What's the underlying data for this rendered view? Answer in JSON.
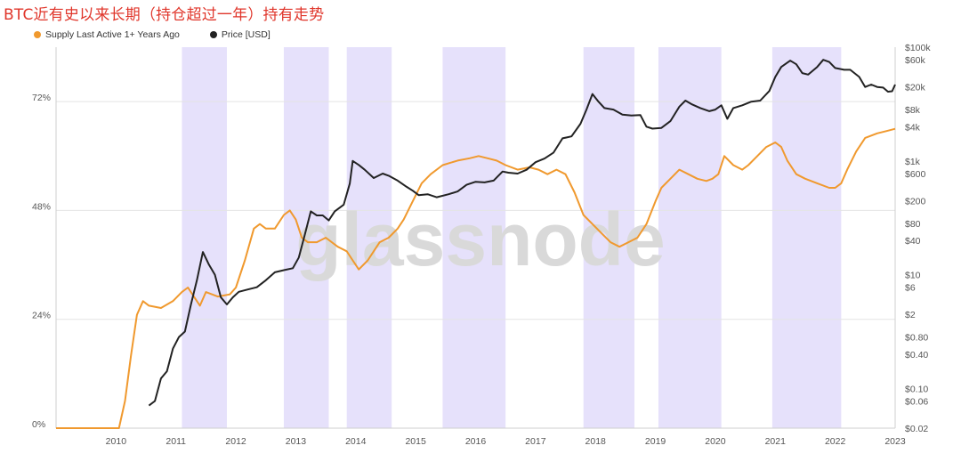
{
  "page_title": "BTC近有史以来长期（持仓超过一年）持有走势",
  "legend": [
    {
      "label": "Supply Last Active 1+ Years Ago",
      "color": "#f0992e"
    },
    {
      "label": "Price [USD]",
      "color": "#222222"
    }
  ],
  "watermark": "glassnode",
  "chart_data": {
    "type": "line",
    "x_range": [
      2009.0,
      2023.0
    ],
    "x_tick_labels": [
      "2010",
      "2011",
      "2012",
      "2013",
      "2014",
      "2015",
      "2016",
      "2017",
      "2018",
      "2019",
      "2020",
      "2021",
      "2022",
      "2023"
    ],
    "y_left_range": [
      0,
      84
    ],
    "y_left_ticks": [
      {
        "v": 0,
        "label": "0%"
      },
      {
        "v": 24,
        "label": "24%"
      },
      {
        "v": 48,
        "label": "48%"
      },
      {
        "v": 72,
        "label": "72%"
      }
    ],
    "y_right_scale": "log",
    "y_right_range": [
      0.02,
      100000
    ],
    "y_right_ticks": [
      {
        "v": 100000,
        "label": "$100k"
      },
      {
        "v": 60000,
        "label": "$60k"
      },
      {
        "v": 20000,
        "label": "$20k"
      },
      {
        "v": 8000,
        "label": "$8k"
      },
      {
        "v": 4000,
        "label": "$4k"
      },
      {
        "v": 1000,
        "label": "$1k"
      },
      {
        "v": 600,
        "label": "$600"
      },
      {
        "v": 200,
        "label": "$200"
      },
      {
        "v": 80,
        "label": "$80"
      },
      {
        "v": 40,
        "label": "$40"
      },
      {
        "v": 10,
        "label": "$10"
      },
      {
        "v": 6,
        "label": "$6"
      },
      {
        "v": 2,
        "label": "$2"
      },
      {
        "v": 0.8,
        "label": "$0.80"
      },
      {
        "v": 0.4,
        "label": "$0.40"
      },
      {
        "v": 0.1,
        "label": "$0.10"
      },
      {
        "v": 0.06,
        "label": "$0.06"
      },
      {
        "v": 0.02,
        "label": "$0.02"
      }
    ],
    "shaded_periods": [
      [
        2011.1,
        2011.85
      ],
      [
        2012.8,
        2013.55
      ],
      [
        2013.85,
        2014.6
      ],
      [
        2015.45,
        2016.5
      ],
      [
        2017.8,
        2018.65
      ],
      [
        2019.05,
        2020.1
      ],
      [
        2020.95,
        2022.1
      ]
    ],
    "series": [
      {
        "name": "Supply Last Active 1+ Years Ago",
        "color": "#f0992e",
        "points": [
          [
            2009.0,
            0
          ],
          [
            2010.0,
            0
          ],
          [
            2010.05,
            0
          ],
          [
            2010.15,
            6
          ],
          [
            2010.25,
            16
          ],
          [
            2010.35,
            25
          ],
          [
            2010.45,
            28
          ],
          [
            2010.55,
            27
          ],
          [
            2010.75,
            26.5
          ],
          [
            2010.95,
            28
          ],
          [
            2011.1,
            30
          ],
          [
            2011.2,
            31
          ],
          [
            2011.3,
            29
          ],
          [
            2011.4,
            27
          ],
          [
            2011.5,
            30
          ],
          [
            2011.7,
            29
          ],
          [
            2011.9,
            29.5
          ],
          [
            2012.0,
            31
          ],
          [
            2012.15,
            37
          ],
          [
            2012.3,
            44
          ],
          [
            2012.4,
            45
          ],
          [
            2012.5,
            44
          ],
          [
            2012.65,
            44
          ],
          [
            2012.8,
            47
          ],
          [
            2012.9,
            48
          ],
          [
            2013.0,
            46
          ],
          [
            2013.1,
            42
          ],
          [
            2013.2,
            41
          ],
          [
            2013.35,
            41
          ],
          [
            2013.5,
            42
          ],
          [
            2013.7,
            40
          ],
          [
            2013.85,
            39
          ],
          [
            2013.95,
            37
          ],
          [
            2014.05,
            35
          ],
          [
            2014.2,
            37
          ],
          [
            2014.4,
            41
          ],
          [
            2014.55,
            42
          ],
          [
            2014.7,
            44
          ],
          [
            2014.8,
            46
          ],
          [
            2014.95,
            50
          ],
          [
            2015.1,
            54
          ],
          [
            2015.25,
            56
          ],
          [
            2015.45,
            58
          ],
          [
            2015.7,
            59
          ],
          [
            2015.9,
            59.5
          ],
          [
            2016.05,
            60
          ],
          [
            2016.2,
            59.5
          ],
          [
            2016.35,
            59
          ],
          [
            2016.5,
            58
          ],
          [
            2016.7,
            57
          ],
          [
            2016.9,
            57.5
          ],
          [
            2017.05,
            57
          ],
          [
            2017.2,
            56
          ],
          [
            2017.35,
            57
          ],
          [
            2017.5,
            56
          ],
          [
            2017.65,
            52
          ],
          [
            2017.8,
            47
          ],
          [
            2017.95,
            45
          ],
          [
            2018.1,
            43
          ],
          [
            2018.25,
            41
          ],
          [
            2018.4,
            40
          ],
          [
            2018.55,
            41
          ],
          [
            2018.7,
            42
          ],
          [
            2018.85,
            45
          ],
          [
            2019.0,
            50
          ],
          [
            2019.1,
            53
          ],
          [
            2019.25,
            55
          ],
          [
            2019.4,
            57
          ],
          [
            2019.55,
            56
          ],
          [
            2019.7,
            55
          ],
          [
            2019.85,
            54.5
          ],
          [
            2019.95,
            55
          ],
          [
            2020.05,
            56
          ],
          [
            2020.15,
            60
          ],
          [
            2020.3,
            58
          ],
          [
            2020.45,
            57
          ],
          [
            2020.55,
            58
          ],
          [
            2020.7,
            60
          ],
          [
            2020.85,
            62
          ],
          [
            2021.0,
            63
          ],
          [
            2021.1,
            62
          ],
          [
            2021.2,
            59
          ],
          [
            2021.35,
            56
          ],
          [
            2021.5,
            55
          ],
          [
            2021.7,
            54
          ],
          [
            2021.9,
            53
          ],
          [
            2022.0,
            53
          ],
          [
            2022.1,
            54
          ],
          [
            2022.2,
            57
          ],
          [
            2022.35,
            61
          ],
          [
            2022.5,
            64
          ],
          [
            2022.7,
            65
          ],
          [
            2022.85,
            65.5
          ],
          [
            2023.0,
            66
          ]
        ]
      },
      {
        "name": "Price [USD]",
        "color": "#222222",
        "points": [
          [
            2010.55,
            0.05
          ],
          [
            2010.65,
            0.06
          ],
          [
            2010.75,
            0.15
          ],
          [
            2010.85,
            0.2
          ],
          [
            2010.95,
            0.5
          ],
          [
            2011.05,
            0.8
          ],
          [
            2011.15,
            1
          ],
          [
            2011.25,
            3
          ],
          [
            2011.35,
            8
          ],
          [
            2011.45,
            25
          ],
          [
            2011.55,
            15
          ],
          [
            2011.65,
            10
          ],
          [
            2011.75,
            4
          ],
          [
            2011.85,
            3
          ],
          [
            2011.95,
            4
          ],
          [
            2012.05,
            5
          ],
          [
            2012.2,
            5.5
          ],
          [
            2012.35,
            6
          ],
          [
            2012.5,
            8
          ],
          [
            2012.65,
            11
          ],
          [
            2012.8,
            12
          ],
          [
            2012.95,
            13
          ],
          [
            2013.05,
            20
          ],
          [
            2013.15,
            50
          ],
          [
            2013.25,
            130
          ],
          [
            2013.35,
            110
          ],
          [
            2013.45,
            110
          ],
          [
            2013.55,
            90
          ],
          [
            2013.65,
            130
          ],
          [
            2013.8,
            170
          ],
          [
            2013.9,
            400
          ],
          [
            2013.95,
            1000
          ],
          [
            2014.05,
            850
          ],
          [
            2014.15,
            700
          ],
          [
            2014.3,
            500
          ],
          [
            2014.45,
            600
          ],
          [
            2014.55,
            550
          ],
          [
            2014.7,
            450
          ],
          [
            2014.85,
            350
          ],
          [
            2014.95,
            300
          ],
          [
            2015.05,
            250
          ],
          [
            2015.2,
            260
          ],
          [
            2015.35,
            230
          ],
          [
            2015.55,
            260
          ],
          [
            2015.7,
            290
          ],
          [
            2015.85,
            380
          ],
          [
            2016.0,
            430
          ],
          [
            2016.15,
            420
          ],
          [
            2016.3,
            450
          ],
          [
            2016.45,
            650
          ],
          [
            2016.55,
            620
          ],
          [
            2016.7,
            600
          ],
          [
            2016.85,
            700
          ],
          [
            2017.0,
            950
          ],
          [
            2017.15,
            1100
          ],
          [
            2017.3,
            1400
          ],
          [
            2017.45,
            2500
          ],
          [
            2017.6,
            2700
          ],
          [
            2017.75,
            4500
          ],
          [
            2017.85,
            8000
          ],
          [
            2017.95,
            15000
          ],
          [
            2018.05,
            11000
          ],
          [
            2018.15,
            8500
          ],
          [
            2018.3,
            8000
          ],
          [
            2018.45,
            6500
          ],
          [
            2018.6,
            6300
          ],
          [
            2018.75,
            6400
          ],
          [
            2018.85,
            4000
          ],
          [
            2018.95,
            3700
          ],
          [
            2019.1,
            3800
          ],
          [
            2019.25,
            5000
          ],
          [
            2019.4,
            9000
          ],
          [
            2019.5,
            11500
          ],
          [
            2019.6,
            10000
          ],
          [
            2019.75,
            8500
          ],
          [
            2019.9,
            7500
          ],
          [
            2020.0,
            8000
          ],
          [
            2020.1,
            9500
          ],
          [
            2020.2,
            5500
          ],
          [
            2020.3,
            8500
          ],
          [
            2020.45,
            9500
          ],
          [
            2020.6,
            11000
          ],
          [
            2020.75,
            11500
          ],
          [
            2020.9,
            17000
          ],
          [
            2021.0,
            30000
          ],
          [
            2021.1,
            45000
          ],
          [
            2021.25,
            58000
          ],
          [
            2021.35,
            50000
          ],
          [
            2021.45,
            35000
          ],
          [
            2021.55,
            33000
          ],
          [
            2021.7,
            45000
          ],
          [
            2021.8,
            60000
          ],
          [
            2021.9,
            55000
          ],
          [
            2022.0,
            43000
          ],
          [
            2022.15,
            40000
          ],
          [
            2022.25,
            40000
          ],
          [
            2022.4,
            30000
          ],
          [
            2022.5,
            20000
          ],
          [
            2022.6,
            22000
          ],
          [
            2022.7,
            20000
          ],
          [
            2022.8,
            19500
          ],
          [
            2022.88,
            16500
          ],
          [
            2022.95,
            16800
          ],
          [
            2023.0,
            22000
          ]
        ]
      }
    ]
  }
}
